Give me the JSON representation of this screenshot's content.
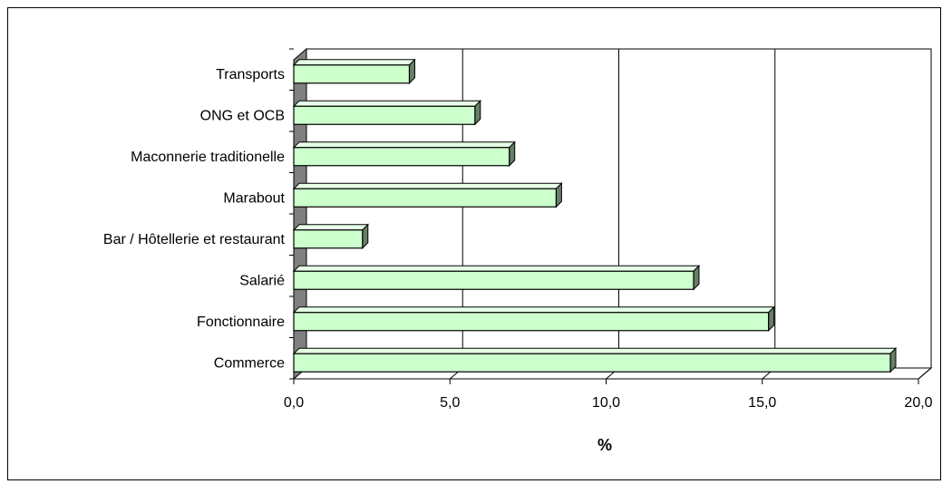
{
  "chart_data": {
    "type": "bar",
    "orientation": "horizontal",
    "categories": [
      "Commerce",
      "Fonctionnaire",
      "Salarié",
      "Bar / Hôtellerie et restaurant",
      "Marabout",
      "Maconnerie traditionelle",
      "ONG et OCB",
      "Transports"
    ],
    "values": [
      19.1,
      15.2,
      12.8,
      2.2,
      8.4,
      6.9,
      5.8,
      3.7
    ],
    "xlabel": "%",
    "ylabel": "",
    "xlim": [
      0,
      20
    ],
    "xticks": [
      "0,0",
      "5,0",
      "10,0",
      "15,0",
      "20,0"
    ],
    "grid": "vertical",
    "legend": "none",
    "style": "3d",
    "colors": {
      "bar_front": "#ccffcc",
      "bar_side": "#667f66",
      "bar_top": "#e6ffe6",
      "wall": "#808080",
      "grid": "#000000"
    }
  }
}
